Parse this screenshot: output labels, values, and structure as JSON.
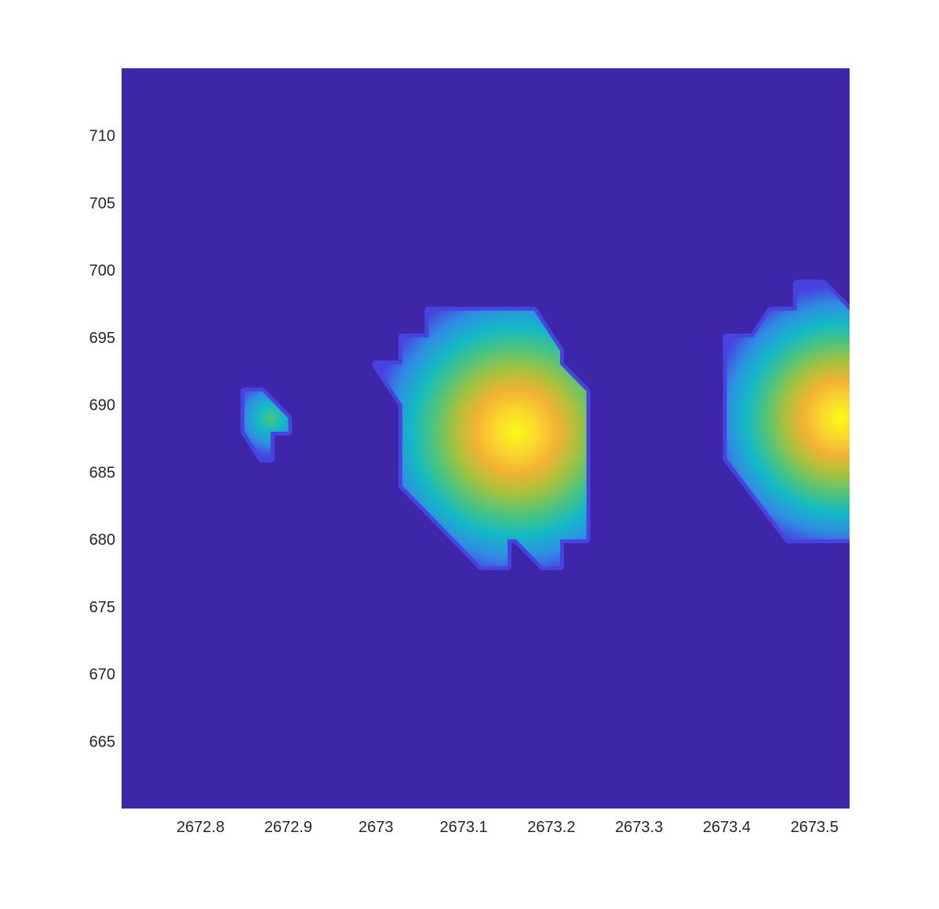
{
  "chart_data": {
    "type": "heatmap",
    "title": "",
    "xlabel": "",
    "ylabel": "",
    "xlim": [
      2672.71,
      2673.54
    ],
    "ylim": [
      660,
      715
    ],
    "xticks": [
      2672.8,
      2672.9,
      2673,
      2673.1,
      2673.2,
      2673.3,
      2673.4,
      2673.5
    ],
    "xtick_labels": [
      "2672.8",
      "2672.9",
      "2673",
      "2673.1",
      "2673.2",
      "2673.3",
      "2673.4",
      "2673.5"
    ],
    "yticks": [
      665,
      670,
      675,
      680,
      685,
      690,
      695,
      700,
      705,
      710
    ],
    "ytick_labels": [
      "665",
      "670",
      "675",
      "680",
      "685",
      "690",
      "695",
      "700",
      "705",
      "710"
    ],
    "colormap": [
      "#3e26a8",
      "#4743e0",
      "#2f8ee2",
      "#13b9c6",
      "#4ec47c",
      "#a6c23e",
      "#f2b233",
      "#fbd82d",
      "#f9fb14"
    ],
    "background_value": 0,
    "value_range": [
      0,
      1
    ],
    "grid": false,
    "colorbar": false,
    "blobs": [
      {
        "name": "small",
        "peak_x": 2672.88,
        "peak_y": 689,
        "peak_value": 0.33,
        "boundary": [
          [
            2672.85,
            691
          ],
          [
            2672.87,
            691
          ],
          [
            2672.9,
            689
          ],
          [
            2672.9,
            688
          ],
          [
            2672.88,
            688
          ],
          [
            2672.88,
            686
          ],
          [
            2672.87,
            686
          ],
          [
            2672.85,
            688
          ]
        ]
      },
      {
        "name": "center",
        "peak_x": 2673.16,
        "peak_y": 688,
        "peak_value": 1.0,
        "boundary": [
          [
            2673.06,
            697
          ],
          [
            2673.18,
            697
          ],
          [
            2673.21,
            694
          ],
          [
            2673.21,
            693
          ],
          [
            2673.24,
            691
          ],
          [
            2673.24,
            680
          ],
          [
            2673.21,
            680
          ],
          [
            2673.21,
            678
          ],
          [
            2673.19,
            678
          ],
          [
            2673.16,
            680
          ],
          [
            2673.15,
            680
          ],
          [
            2673.15,
            678
          ],
          [
            2673.12,
            678
          ],
          [
            2673.03,
            684
          ],
          [
            2673.03,
            690
          ],
          [
            2673.0,
            693
          ],
          [
            2673.03,
            693
          ],
          [
            2673.03,
            695
          ],
          [
            2673.06,
            695
          ]
        ]
      },
      {
        "name": "right",
        "peak_x": 2673.53,
        "peak_y": 689,
        "peak_value": 0.9,
        "boundary": [
          [
            2673.48,
            699
          ],
          [
            2673.51,
            699
          ],
          [
            2673.54,
            697
          ],
          [
            2673.54,
            680
          ],
          [
            2673.47,
            680
          ],
          [
            2673.4,
            686
          ],
          [
            2673.4,
            695
          ],
          [
            2673.43,
            695
          ],
          [
            2673.45,
            697
          ],
          [
            2673.48,
            697
          ]
        ]
      }
    ]
  }
}
